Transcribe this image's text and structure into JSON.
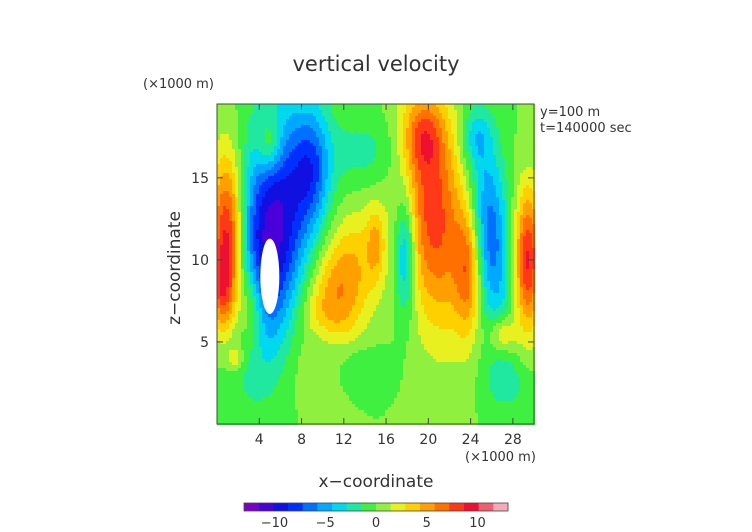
{
  "chart_data": {
    "type": "heatmap",
    "title": "vertical velocity",
    "xlabel": "x−coordinate",
    "ylabel": "z−coordinate",
    "x_unit": "(×1000 m)",
    "y_unit": "(×1000 m)",
    "annotations": [
      "y=100 m",
      "t=140000 sec"
    ],
    "xlim": [
      0,
      30
    ],
    "ylim": [
      0,
      19.5
    ],
    "x_ticks": [
      4,
      8,
      12,
      16,
      20,
      24,
      28
    ],
    "y_ticks": [
      5,
      10,
      15
    ],
    "colorbar": {
      "range": [
        -13,
        13
      ],
      "ticks": [
        -10,
        -5,
        0,
        5,
        10
      ],
      "colors": [
        "#7b00c8",
        "#4a00d8",
        "#1010e0",
        "#0030ff",
        "#0070ff",
        "#00a8ff",
        "#00d8f0",
        "#20e8a0",
        "#40f040",
        "#90f040",
        "#e8f020",
        "#ffd000",
        "#ffa000",
        "#ff7000",
        "#ff3818",
        "#ee1030",
        "#ee6070",
        "#f8a8b8"
      ]
    },
    "features": [
      {
        "x": 1.0,
        "z": 11.0,
        "sx": 1.1,
        "sz": 3.6,
        "amp": 11,
        "rot": 0
      },
      {
        "x": 0.5,
        "z": 8.0,
        "sx": 0.7,
        "sz": 1.6,
        "amp": 4,
        "rot": 0
      },
      {
        "x": 3.2,
        "z": 7.0,
        "sx": 0.9,
        "sz": 2.0,
        "amp": 5,
        "rot": 0
      },
      {
        "x": 5.2,
        "z": 11.5,
        "sx": 2.4,
        "sz": 5.2,
        "amp": -11,
        "rot": -0.2
      },
      {
        "x": 5.0,
        "z": 17.0,
        "sx": 0.8,
        "sz": 1.2,
        "amp": 4,
        "rot": 0
      },
      {
        "x": 9.0,
        "z": 15.5,
        "sx": 1.2,
        "sz": 2.5,
        "amp": -5,
        "rot": 0
      },
      {
        "x": 11.5,
        "z": 8.0,
        "sx": 2.0,
        "sz": 3.4,
        "amp": 6,
        "rot": -0.55
      },
      {
        "x": 15.0,
        "z": 11.0,
        "sx": 0.6,
        "sz": 1.6,
        "amp": 3,
        "rot": 0
      },
      {
        "x": 14.0,
        "z": 16.5,
        "sx": 2.6,
        "sz": 1.6,
        "amp": -2,
        "rot": 0
      },
      {
        "x": 17.8,
        "z": 10.5,
        "sx": 0.7,
        "sz": 2.6,
        "amp": -6,
        "rot": 0
      },
      {
        "x": 20.5,
        "z": 13.0,
        "sx": 2.0,
        "sz": 5.0,
        "amp": 8,
        "rot": 0.1
      },
      {
        "x": 19.5,
        "z": 17.5,
        "sx": 1.3,
        "sz": 1.5,
        "amp": 4,
        "rot": 0
      },
      {
        "x": 23.8,
        "z": 9.5,
        "sx": 0.9,
        "sz": 2.8,
        "amp": 6,
        "rot": 0
      },
      {
        "x": 25.8,
        "z": 11.5,
        "sx": 1.3,
        "sz": 4.0,
        "amp": -7,
        "rot": 0.1
      },
      {
        "x": 24.5,
        "z": 17.5,
        "sx": 1.0,
        "sz": 1.2,
        "amp": -3,
        "rot": 0
      },
      {
        "x": 29.4,
        "z": 10.0,
        "sx": 0.9,
        "sz": 3.0,
        "amp": 9,
        "rot": 0
      },
      {
        "x": 27.0,
        "z": 5.5,
        "sx": 0.9,
        "sz": 0.8,
        "amp": 4,
        "rot": 0
      },
      {
        "x": 27.5,
        "z": 2.5,
        "sx": 1.6,
        "sz": 1.2,
        "amp": -2,
        "rot": 0
      },
      {
        "x": 10.0,
        "z": 5.0,
        "sx": 1.4,
        "sz": 0.9,
        "amp": -2,
        "rot": 0
      },
      {
        "x": 1.8,
        "z": 4.0,
        "sx": 0.5,
        "sz": 0.5,
        "amp": 3,
        "rot": 0
      },
      {
        "x": 13.0,
        "z": 3.5,
        "sx": 2.0,
        "sz": 1.0,
        "amp": -1.5,
        "rot": 0
      }
    ],
    "hole": {
      "x": 5.0,
      "z": 9.0,
      "rx": 0.9,
      "rz": 2.3
    }
  }
}
